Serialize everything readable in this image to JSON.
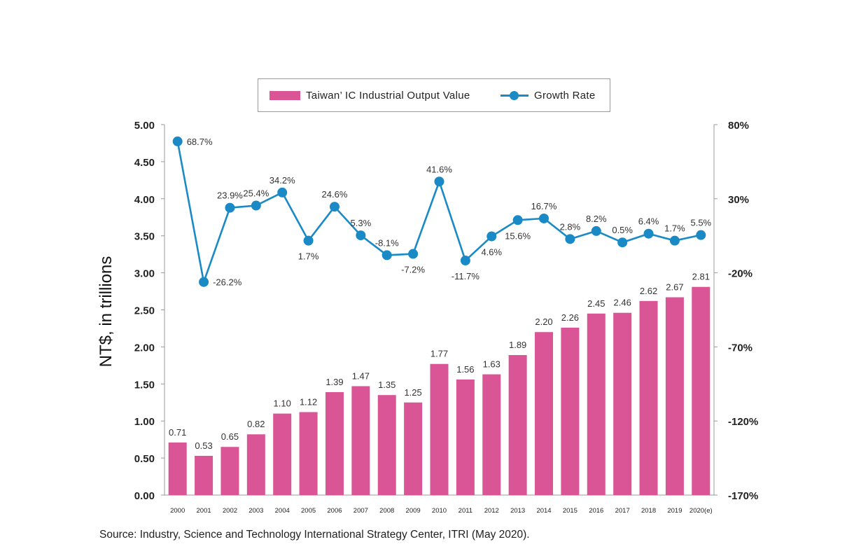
{
  "colors": {
    "bar": "#d95595",
    "line": "#1a8ac6",
    "axis": "#9a9a9a"
  },
  "legend": {
    "bar_label": "Taiwan’ IC Industrial Output Value",
    "line_label": "Growth Rate"
  },
  "source": "Source: Industry, Science and Technology International Strategy Center, ITRI (May 2020).",
  "chart_data": {
    "type": "bar",
    "categories": [
      "2000",
      "2001",
      "2002",
      "2003",
      "2004",
      "2005",
      "2006",
      "2007",
      "2008",
      "2009",
      "2010",
      "2011",
      "2012",
      "2013",
      "2014",
      "2015",
      "2016",
      "2017",
      "2018",
      "2019",
      "2020(e)"
    ],
    "ylabel": "NT$, in trillions",
    "ylim": [
      0,
      5
    ],
    "y_ticks": [
      "0.00",
      "0.50",
      "1.00",
      "1.50",
      "2.00",
      "2.50",
      "3.00",
      "3.50",
      "4.00",
      "4.50",
      "5.00"
    ],
    "y2lim": [
      -170,
      80
    ],
    "y2_ticks": [
      "-170%",
      "-120%",
      "-70%",
      "-20%",
      "30%",
      "80%"
    ],
    "series": [
      {
        "name": "Taiwan’ IC Industrial Output Value",
        "type": "bar",
        "values": [
          0.71,
          0.53,
          0.65,
          0.82,
          1.1,
          1.12,
          1.39,
          1.47,
          1.35,
          1.25,
          1.77,
          1.56,
          1.63,
          1.89,
          2.2,
          2.26,
          2.45,
          2.46,
          2.62,
          2.67,
          2.81
        ],
        "labels": [
          "0.71",
          "0.53",
          "0.65",
          "0.82",
          "1.10",
          "1.12",
          "1.39",
          "1.47",
          "1.35",
          "1.25",
          "1.77",
          "1.56",
          "1.63",
          "1.89",
          "2.20",
          "2.26",
          "2.45",
          "2.46",
          "2.62",
          "2.67",
          "2.81"
        ]
      },
      {
        "name": "Growth Rate",
        "type": "line",
        "axis": "right",
        "values": [
          68.7,
          -26.2,
          23.9,
          25.4,
          34.2,
          1.7,
          24.6,
          5.3,
          -8.1,
          -7.2,
          41.6,
          -11.7,
          4.6,
          15.6,
          16.7,
          2.8,
          8.2,
          0.5,
          6.4,
          1.7,
          5.5
        ],
        "labels": [
          "68.7%",
          "-26.2%",
          "23.9%",
          "25.4%",
          "34.2%",
          "1.7%",
          "24.6%",
          "5.3%",
          "-8.1%",
          "-7.2%",
          "41.6%",
          "-11.7%",
          "4.6%",
          "15.6%",
          "16.7%",
          "2.8%",
          "8.2%",
          "0.5%",
          "6.4%",
          "1.7%",
          "5.5%"
        ],
        "label_pos": [
          "right",
          "right",
          "above",
          "above",
          "above",
          "below",
          "above",
          "above",
          "above",
          "below",
          "above",
          "below",
          "below",
          "below",
          "above",
          "above",
          "above",
          "above",
          "above",
          "above",
          "above"
        ]
      }
    ],
    "legend_position": "top-center",
    "grid": false
  }
}
